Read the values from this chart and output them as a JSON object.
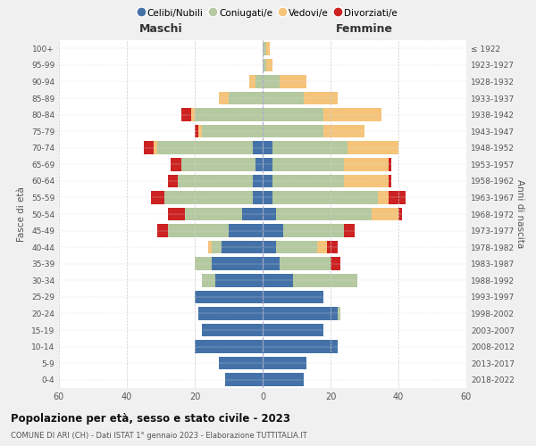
{
  "age_groups": [
    "0-4",
    "5-9",
    "10-14",
    "15-19",
    "20-24",
    "25-29",
    "30-34",
    "35-39",
    "40-44",
    "45-49",
    "50-54",
    "55-59",
    "60-64",
    "65-69",
    "70-74",
    "75-79",
    "80-84",
    "85-89",
    "90-94",
    "95-99",
    "100+"
  ],
  "birth_years": [
    "2018-2022",
    "2013-2017",
    "2008-2012",
    "2003-2007",
    "1998-2002",
    "1993-1997",
    "1988-1992",
    "1983-1987",
    "1978-1982",
    "1973-1977",
    "1968-1972",
    "1963-1967",
    "1958-1962",
    "1953-1957",
    "1948-1952",
    "1943-1947",
    "1938-1942",
    "1933-1937",
    "1928-1932",
    "1923-1927",
    "≤ 1922"
  ],
  "colors": {
    "celibi": "#4472a8",
    "coniugati": "#b5c9a0",
    "vedovi": "#f5c47a",
    "divorziati": "#cc2222"
  },
  "maschi": {
    "celibi": [
      11,
      13,
      20,
      18,
      19,
      20,
      14,
      15,
      12,
      10,
      6,
      3,
      3,
      2,
      3,
      0,
      0,
      0,
      0,
      0,
      0
    ],
    "coniugati": [
      0,
      0,
      0,
      0,
      0,
      0,
      4,
      5,
      3,
      18,
      17,
      26,
      22,
      22,
      28,
      18,
      20,
      10,
      2,
      0,
      0
    ],
    "vedovi": [
      0,
      0,
      0,
      0,
      0,
      0,
      0,
      0,
      1,
      0,
      0,
      0,
      0,
      0,
      1,
      1,
      1,
      3,
      2,
      0,
      0
    ],
    "divorziati": [
      0,
      0,
      0,
      0,
      0,
      0,
      0,
      0,
      0,
      3,
      5,
      4,
      3,
      3,
      3,
      1,
      3,
      0,
      0,
      0,
      0
    ]
  },
  "femmine": {
    "celibi": [
      12,
      13,
      22,
      18,
      22,
      18,
      9,
      5,
      4,
      6,
      4,
      3,
      3,
      3,
      3,
      0,
      0,
      0,
      0,
      0,
      0
    ],
    "coniugati": [
      0,
      0,
      0,
      0,
      1,
      0,
      19,
      15,
      12,
      18,
      28,
      31,
      21,
      21,
      22,
      18,
      18,
      12,
      5,
      1,
      1
    ],
    "vedovi": [
      0,
      0,
      0,
      0,
      0,
      0,
      0,
      0,
      3,
      0,
      8,
      3,
      13,
      13,
      15,
      12,
      17,
      10,
      8,
      2,
      1
    ],
    "divorziati": [
      0,
      0,
      0,
      0,
      0,
      0,
      0,
      3,
      3,
      3,
      1,
      5,
      1,
      1,
      0,
      0,
      0,
      0,
      0,
      0,
      0
    ]
  },
  "xlim": 60,
  "title": "Popolazione per età, sesso e stato civile - 2023",
  "subtitle": "COMUNE DI ARI (CH) - Dati ISTAT 1° gennaio 2023 - Elaborazione TUTTITALIA.IT",
  "ylabel_left": "Fasce di età",
  "ylabel_right": "Anni di nascita",
  "xlabel_left": "Maschi",
  "xlabel_right": "Femmine",
  "bg_color": "#f0f0f0",
  "plot_bg": "#ffffff",
  "legend_labels": [
    "Celibi/Nubili",
    "Coniugati/e",
    "Vedovi/e",
    "Divorziati/e"
  ]
}
